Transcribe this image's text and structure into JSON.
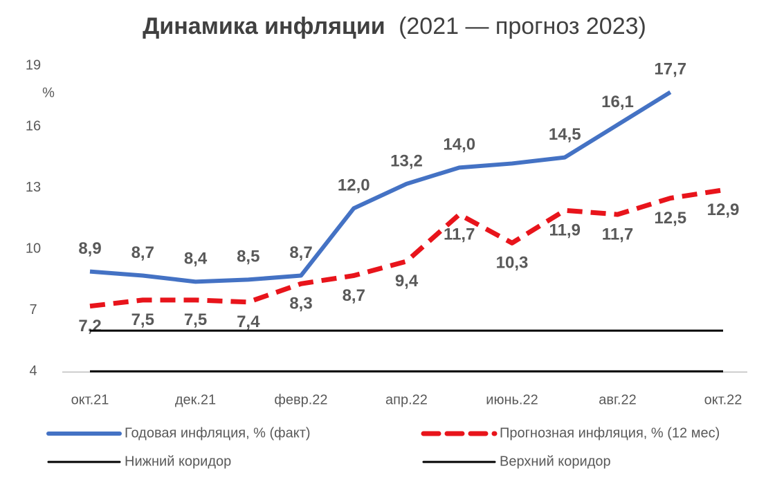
{
  "chart_data": {
    "type": "line",
    "title": "Динамика инфляции",
    "subtitle": "(2021 — прогноз 2023)",
    "y_label": "%",
    "categories": [
      "окт.21",
      null,
      "дек.21",
      null,
      "февр.22",
      null,
      "апр.22",
      null,
      "июнь.22",
      null,
      "авг.22",
      null,
      "окт.22"
    ],
    "ylim": [
      4,
      19
    ],
    "yticks": [
      4,
      7,
      10,
      13,
      16,
      19
    ],
    "series": [
      {
        "name": "Годовая инфляция, % (факт)",
        "color": "#4472c4",
        "style": "solid",
        "label_side": "above",
        "values": [
          8.9,
          8.7,
          8.4,
          8.5,
          8.7,
          12.0,
          13.2,
          14.0,
          14.2,
          14.5,
          16.1,
          17.7,
          null
        ],
        "value_labels": [
          "8,9",
          "8,7",
          "8,4",
          "8,5",
          "8,7",
          "12,0",
          "13,2",
          "14,0",
          null,
          "14,5",
          "16,1",
          "17,7",
          null
        ]
      },
      {
        "name": "Прогнозная инфляция, % (12 мес)",
        "color": "#e8141b",
        "style": "dashed",
        "label_side": "below",
        "values": [
          7.2,
          7.5,
          7.5,
          7.4,
          8.3,
          8.7,
          9.4,
          11.7,
          10.3,
          11.9,
          11.7,
          12.5,
          12.9
        ],
        "value_labels": [
          "7,2",
          "7,5",
          "7,5",
          "7,4",
          "8,3",
          "8,7",
          "9,4",
          "11,7",
          "10,3",
          "11,9",
          "11,7",
          "12,5",
          "12,9"
        ]
      },
      {
        "name": "Нижний коридор",
        "color": "#000000",
        "style": "thin",
        "values": [
          4,
          4,
          4,
          4,
          4,
          4,
          4,
          4,
          4,
          4,
          4,
          4,
          4
        ]
      },
      {
        "name": "Верхний коридор",
        "color": "#000000",
        "style": "thin",
        "values": [
          6,
          6,
          6,
          6,
          6,
          6,
          6,
          6,
          6,
          6,
          6,
          6,
          6
        ]
      }
    ]
  }
}
